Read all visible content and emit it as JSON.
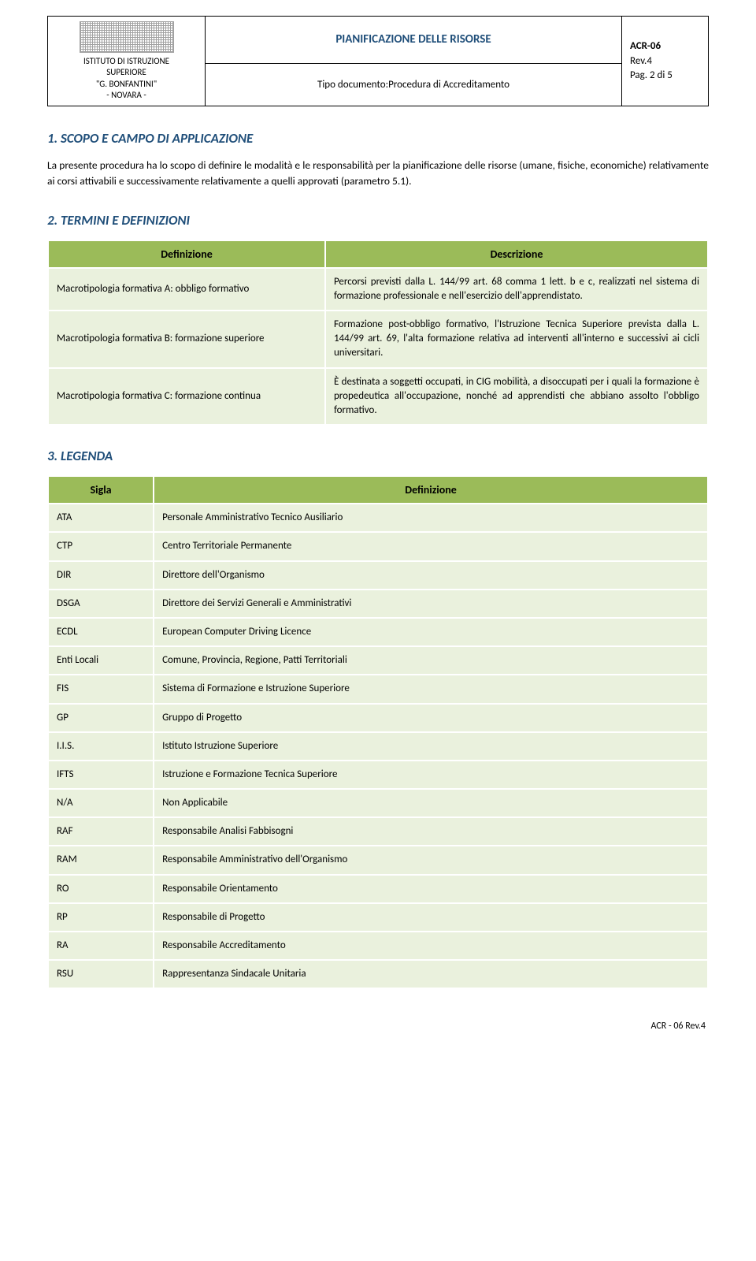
{
  "header": {
    "org1": "ISTITUTO DI ISTRUZIONE",
    "org2": "SUPERIORE",
    "org3": "\"G. BONFANTINI\"",
    "org4": "- NOVARA -",
    "main_title": "PIANIFICAZIONE DELLE RISORSE",
    "subtitle": "Tipo documento:Procedura di Accreditamento",
    "code": "ACR-06",
    "rev": "Rev.4",
    "page": "Pag. 2 di 5"
  },
  "section1": {
    "title": "1. SCOPO E CAMPO DI APPLICAZIONE",
    "body": "La presente procedura ha lo scopo di definire le modalità e le responsabilità per la pianificazione delle risorse (umane, fisiche, economiche) relativamente ai corsi attivabili e successivamente relativamente a quelli approvati (parametro 5.1)."
  },
  "section2": {
    "title": "2. TERMINI E DEFINIZIONI",
    "col1": "Definizione",
    "col2": "Descrizione",
    "rows": [
      {
        "def": "Macrotipologia formativa A: obbligo formativo",
        "desc": "Percorsi previsti dalla L. 144/99 art. 68 comma 1 lett. b e c, realizzati nel sistema di formazione professionale e nell'esercizio dell'apprendistato."
      },
      {
        "def": "Macrotipologia formativa B: formazione superiore",
        "desc": "Formazione post-obbligo formativo, l'Istruzione Tecnica Superiore prevista dalla L. 144/99 art. 69, l'alta formazione relativa ad interventi all'interno e successivi ai cicli universitari."
      },
      {
        "def": "Macrotipologia formativa C: formazione continua",
        "desc": "È destinata a soggetti occupati, in CIG mobilità, a disoccupati per i quali la formazione è propedeutica all'occupazione, nonché ad apprendisti che abbiano assolto l'obbligo formativo."
      }
    ]
  },
  "section3": {
    "title": "3. LEGENDA",
    "col1": "Sigla",
    "col2": "Definizione",
    "rows": [
      {
        "s": "ATA",
        "d": "Personale Amministrativo Tecnico Ausiliario"
      },
      {
        "s": "CTP",
        "d": "Centro Territoriale Permanente"
      },
      {
        "s": "DIR",
        "d": "Direttore dell'Organismo"
      },
      {
        "s": "DSGA",
        "d": "Direttore dei Servizi Generali e Amministrativi"
      },
      {
        "s": "ECDL",
        "d": "European Computer Driving Licence"
      },
      {
        "s": "Enti Locali",
        "d": "Comune, Provincia, Regione, Patti Territoriali"
      },
      {
        "s": "FIS",
        "d": "Sistema di Formazione e Istruzione Superiore"
      },
      {
        "s": "GP",
        "d": "Gruppo di Progetto"
      },
      {
        "s": "I.I.S.",
        "d": "Istituto Istruzione Superiore"
      },
      {
        "s": "IFTS",
        "d": "Istruzione e Formazione Tecnica Superiore"
      },
      {
        "s": "N/A",
        "d": "Non Applicabile"
      },
      {
        "s": "RAF",
        "d": "Responsabile Analisi Fabbisogni"
      },
      {
        "s": "RAM",
        "d": "Responsabile Amministrativo dell'Organismo"
      },
      {
        "s": "RO",
        "d": "Responsabile Orientamento"
      },
      {
        "s": "RP",
        "d": "Responsabile di Progetto"
      },
      {
        "s": "RA",
        "d": "Responsabile Accreditamento"
      },
      {
        "s": "RSU",
        "d": "Rappresentanza Sindacale Unitaria"
      }
    ]
  },
  "footer": "ACR - 06   Rev.4"
}
